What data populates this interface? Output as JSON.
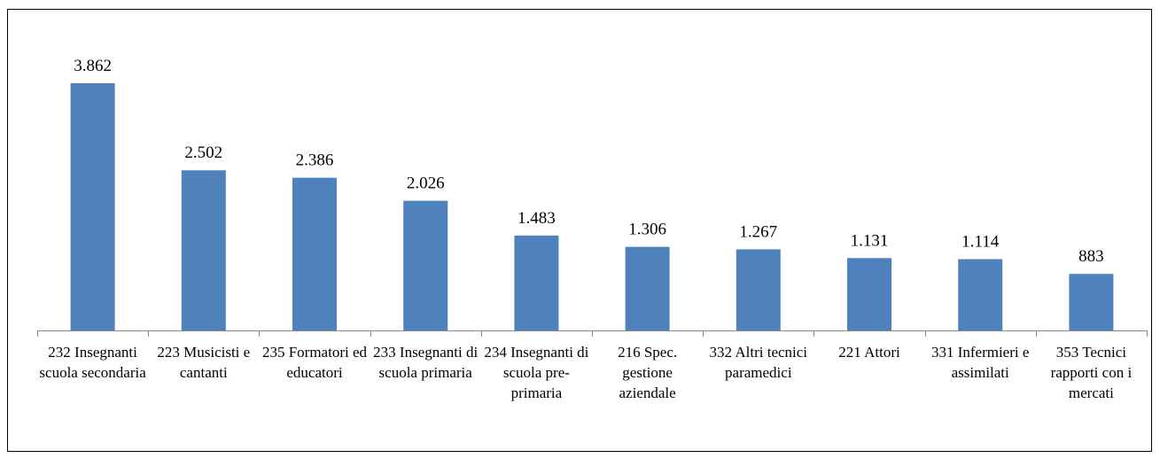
{
  "chart_data": {
    "type": "bar",
    "categories": [
      "232 Insegnanti scuola secondaria",
      "223 Musicisti e cantanti",
      "235 Formatori ed educatori",
      "233 Insegnanti di scuola primaria",
      "234 Insegnanti di scuola pre-primaria",
      "216 Spec. gestione aziendale",
      "332 Altri tecnici paramedici",
      "221 Attori",
      "331 Infermieri e assimilati",
      "353 Tecnici rapporti con i mercati"
    ],
    "values": [
      3862,
      2502,
      2386,
      2026,
      1483,
      1306,
      1267,
      1131,
      1114,
      883
    ],
    "value_labels": [
      "3.862",
      "2.502",
      "2.386",
      "2.026",
      "1.483",
      "1.306",
      "1.267",
      "1.131",
      "1.114",
      "883"
    ],
    "color": "#4f81bd"
  }
}
